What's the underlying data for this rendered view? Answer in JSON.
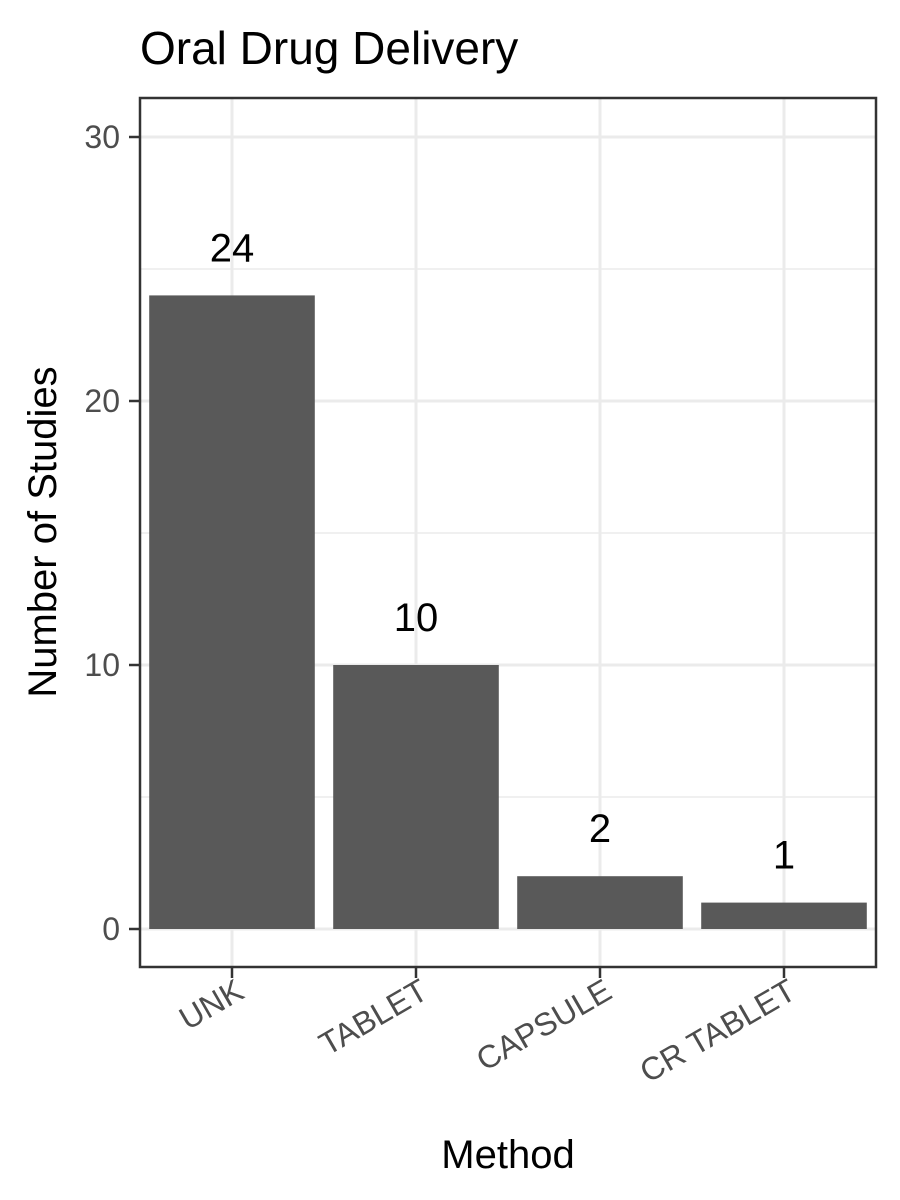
{
  "chart_data": {
    "type": "bar",
    "title": "Oral Drug Delivery",
    "xlabel": "Method",
    "ylabel": "Number of Studies",
    "categories": [
      "UNK",
      "TABLET",
      "CAPSULE",
      "CR TABLET"
    ],
    "values": [
      24,
      10,
      2,
      1
    ],
    "data_labels": [
      "24",
      "10",
      "2",
      "1"
    ],
    "ylim": [
      0,
      30
    ],
    "yticks": [
      0,
      10,
      20,
      30
    ],
    "ytick_labels": [
      "0",
      "10",
      "20",
      "30"
    ],
    "grid": true,
    "legend": "none",
    "colors": {
      "bar": "#595959",
      "grid": "#ebebeb",
      "panel_border": "#333333",
      "tick_label": "#4d4d4d"
    }
  }
}
